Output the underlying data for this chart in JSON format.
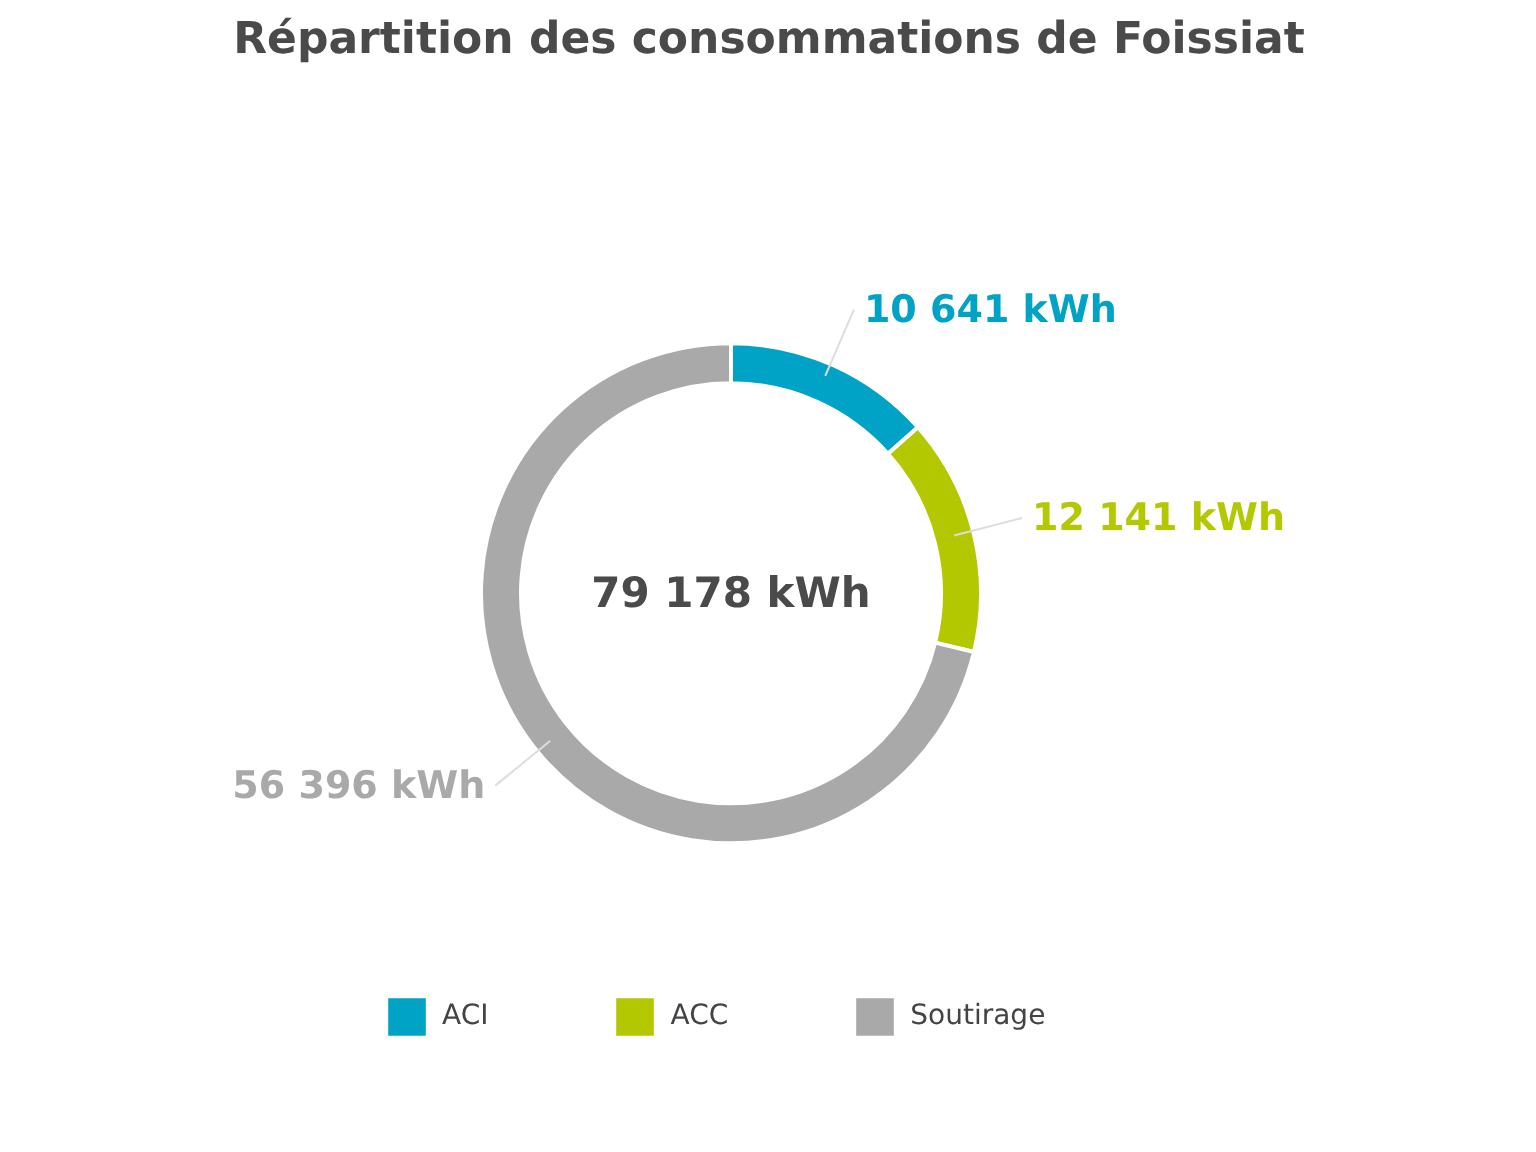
{
  "chart_data": {
    "type": "donut",
    "title": "Répartition des consommations de Foissiat",
    "categories": [
      "ACI",
      "ACC",
      "Soutirage"
    ],
    "values": [
      10641,
      12141,
      56396
    ],
    "colors": [
      "#00a3c6",
      "#b3c800",
      "#a9a9a9"
    ],
    "value_labels": [
      "10 641 kWh",
      "12 141 kWh",
      "56 396 kWh"
    ],
    "annotations": [
      "79 178 kWh"
    ],
    "legend": "bottom"
  }
}
